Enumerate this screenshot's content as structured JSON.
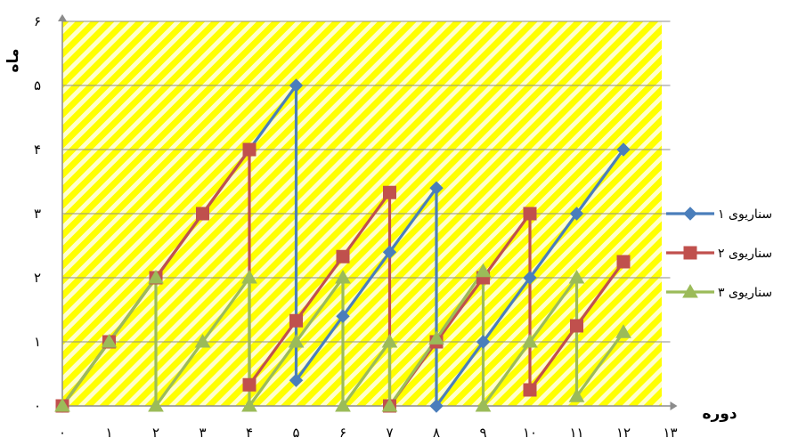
{
  "chart_data": {
    "type": "line",
    "xlabel": "دوره",
    "ylabel": "ماه",
    "xlim": [
      0,
      13
    ],
    "ylim": [
      0,
      6
    ],
    "grid": "horizontal",
    "legend_placement": "right",
    "background": "yellow diagonal hatch",
    "x_tick_labels": [
      "۰",
      "۱",
      "۲",
      "۳",
      "۴",
      "۵",
      "۶",
      "۷",
      "۸",
      "۹",
      "۱۰",
      "۱۱",
      "۱۲",
      "۱۳"
    ],
    "y_tick_labels": [
      "۰",
      "۱",
      "۲",
      "۳",
      "۴",
      "۵",
      "۶"
    ],
    "series": [
      {
        "name": "سناریوی ۱",
        "color": "#4a7ebb",
        "marker": "diamond",
        "points": [
          [
            0,
            0
          ],
          [
            1,
            1
          ],
          [
            2,
            2
          ],
          [
            3,
            3
          ],
          [
            4,
            4
          ],
          [
            5,
            5
          ],
          [
            5,
            0.4
          ],
          [
            6,
            1.4
          ],
          [
            7,
            2.4
          ],
          [
            8,
            3.4
          ],
          [
            8,
            0
          ],
          [
            9,
            1
          ],
          [
            10,
            2
          ],
          [
            11,
            3
          ],
          [
            12,
            4
          ]
        ]
      },
      {
        "name": "سناریوی ۲",
        "color": "#c0504d",
        "marker": "square",
        "points": [
          [
            0,
            0
          ],
          [
            1,
            1
          ],
          [
            2,
            2
          ],
          [
            3,
            3
          ],
          [
            4,
            4
          ],
          [
            4,
            0.33
          ],
          [
            5,
            1.33
          ],
          [
            6,
            2.33
          ],
          [
            7,
            3.33
          ],
          [
            7,
            0
          ],
          [
            8,
            1
          ],
          [
            9,
            2
          ],
          [
            10,
            3
          ],
          [
            10,
            0.25
          ],
          [
            11,
            1.25
          ],
          [
            12,
            2.25
          ]
        ]
      },
      {
        "name": "سناریوی ۳",
        "color": "#9bbb59",
        "marker": "triangle",
        "points": [
          [
            0,
            0
          ],
          [
            1,
            1
          ],
          [
            2,
            2
          ],
          [
            2,
            0
          ],
          [
            3,
            1
          ],
          [
            4,
            2
          ],
          [
            4,
            0
          ],
          [
            5,
            1
          ],
          [
            6,
            2
          ],
          [
            6,
            0
          ],
          [
            7,
            1
          ],
          [
            7,
            0
          ],
          [
            8,
            1.05
          ],
          [
            9,
            2.1
          ],
          [
            9,
            0
          ],
          [
            10,
            1
          ],
          [
            11,
            2
          ],
          [
            11,
            0.15
          ],
          [
            12,
            1.15
          ]
        ]
      }
    ]
  }
}
